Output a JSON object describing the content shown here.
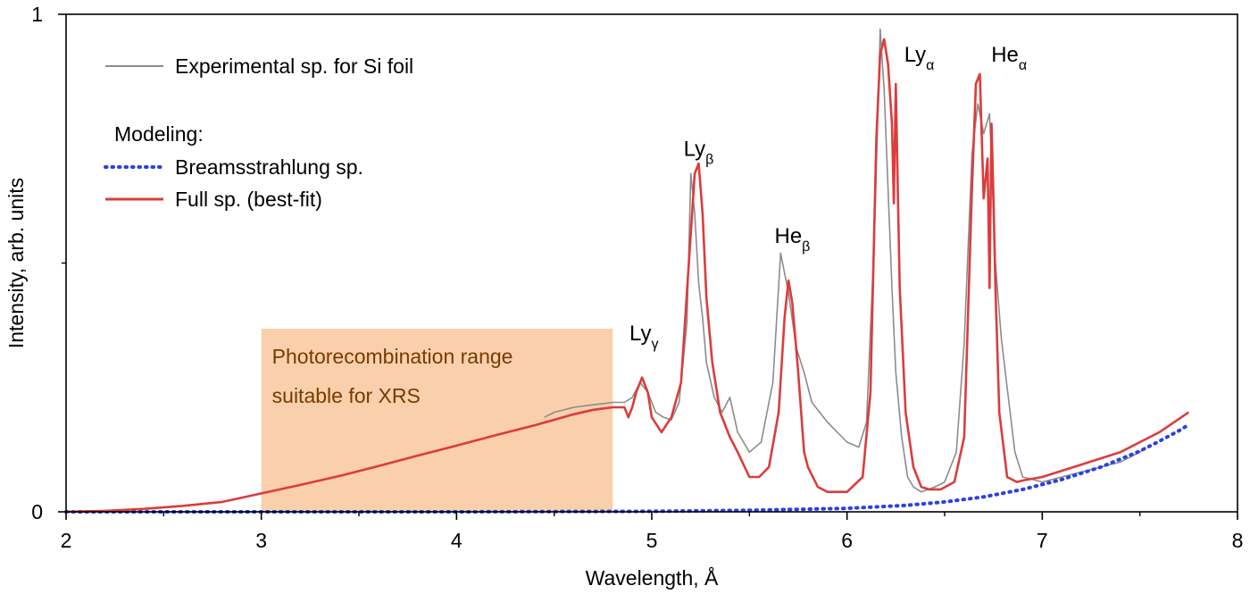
{
  "chart_data": {
    "type": "line",
    "xlabel": "Wavelength, Å",
    "ylabel": "Intensity, arb. units",
    "xlim": [
      2,
      8
    ],
    "ylim": [
      0,
      1
    ],
    "xticks": [
      "2",
      "3",
      "4",
      "5",
      "6",
      "7",
      "8"
    ],
    "yticks": [
      "0",
      "1"
    ],
    "legend": {
      "position": "top-left",
      "experimental_label": "Experimental sp. for Si foil",
      "modeling_header": "Modeling:",
      "brems_label": "Breamsstrahlung sp.",
      "full_label": "Full sp. (best-fit)"
    },
    "region": {
      "x_range": [
        3.0,
        4.8
      ],
      "line1": "Photorecombination range",
      "line2": "suitable for XRS",
      "color": "#f9cda7"
    },
    "peak_labels": [
      {
        "x": 4.96,
        "y": 0.345,
        "base": "Ly",
        "sub": "γ"
      },
      {
        "x": 5.24,
        "y": 0.715,
        "base": "Ly",
        "sub": "β"
      },
      {
        "x": 5.72,
        "y": 0.54,
        "base": "He",
        "sub": "β"
      },
      {
        "x": 6.37,
        "y": 0.905,
        "base": "Ly",
        "sub": "α"
      },
      {
        "x": 6.83,
        "y": 0.905,
        "base": "He",
        "sub": "α"
      }
    ],
    "series": [
      {
        "name": "Experimental sp. for Si foil",
        "color": "#8c8c8c",
        "x": [
          4.45,
          4.5,
          4.6,
          4.7,
          4.8,
          4.86,
          4.9,
          4.94,
          4.98,
          5.02,
          5.06,
          5.1,
          5.14,
          5.18,
          5.2,
          5.22,
          5.24,
          5.26,
          5.28,
          5.32,
          5.36,
          5.4,
          5.44,
          5.5,
          5.56,
          5.62,
          5.66,
          5.7,
          5.74,
          5.78,
          5.82,
          5.9,
          6.0,
          6.06,
          6.1,
          6.14,
          6.17,
          6.19,
          6.21,
          6.23,
          6.25,
          6.28,
          6.31,
          6.34,
          6.38,
          6.45,
          6.5,
          6.56,
          6.6,
          6.64,
          6.67,
          6.7,
          6.73,
          6.76,
          6.79,
          6.82,
          6.86,
          6.9,
          7.0,
          7.1,
          7.2,
          7.3,
          7.4,
          7.5,
          7.53
        ],
        "y": [
          0.19,
          0.2,
          0.21,
          0.215,
          0.22,
          0.22,
          0.23,
          0.26,
          0.24,
          0.2,
          0.19,
          0.185,
          0.22,
          0.38,
          0.68,
          0.6,
          0.46,
          0.39,
          0.3,
          0.23,
          0.2,
          0.23,
          0.16,
          0.12,
          0.14,
          0.26,
          0.52,
          0.44,
          0.33,
          0.28,
          0.22,
          0.18,
          0.14,
          0.13,
          0.18,
          0.55,
          0.97,
          0.85,
          0.65,
          0.45,
          0.28,
          0.15,
          0.07,
          0.05,
          0.04,
          0.05,
          0.06,
          0.12,
          0.34,
          0.72,
          0.82,
          0.76,
          0.8,
          0.5,
          0.35,
          0.25,
          0.12,
          0.07,
          0.06,
          0.07,
          0.08,
          0.09,
          0.1,
          0.12,
          0.13
        ]
      },
      {
        "name": "Breamsstrahlung sp.",
        "color": "#2b3fe6",
        "x": [
          2.0,
          3.0,
          4.0,
          5.0,
          5.5,
          6.0,
          6.3,
          6.5,
          6.7,
          6.9,
          7.1,
          7.3,
          7.5,
          7.6,
          7.7,
          7.75
        ],
        "y": [
          0.0,
          0.0,
          0.0,
          0.001,
          0.003,
          0.007,
          0.013,
          0.02,
          0.03,
          0.045,
          0.065,
          0.09,
          0.122,
          0.142,
          0.163,
          0.175
        ]
      },
      {
        "name": "Full sp. (best-fit)",
        "color": "#dc3c3c",
        "x": [
          2.0,
          2.2,
          2.4,
          2.6,
          2.8,
          3.0,
          3.2,
          3.4,
          3.6,
          3.8,
          4.0,
          4.2,
          4.4,
          4.6,
          4.7,
          4.8,
          4.86,
          4.88,
          4.9,
          4.92,
          4.95,
          4.98,
          5.0,
          5.05,
          5.1,
          5.15,
          5.19,
          5.22,
          5.24,
          5.26,
          5.28,
          5.31,
          5.35,
          5.4,
          5.44,
          5.5,
          5.55,
          5.6,
          5.65,
          5.68,
          5.7,
          5.72,
          5.75,
          5.78,
          5.8,
          5.85,
          5.9,
          6.0,
          6.08,
          6.12,
          6.15,
          6.17,
          6.19,
          6.21,
          6.23,
          6.24,
          6.25,
          6.26,
          6.27,
          6.3,
          6.34,
          6.38,
          6.42,
          6.48,
          6.55,
          6.6,
          6.64,
          6.66,
          6.68,
          6.7,
          6.72,
          6.73,
          6.74,
          6.75,
          6.76,
          6.78,
          6.82,
          6.87,
          6.9,
          7.0,
          7.2,
          7.4,
          7.6,
          7.75
        ],
        "y": [
          0.0,
          0.002,
          0.006,
          0.012,
          0.02,
          0.037,
          0.054,
          0.072,
          0.092,
          0.113,
          0.133,
          0.154,
          0.174,
          0.196,
          0.205,
          0.21,
          0.21,
          0.19,
          0.21,
          0.24,
          0.27,
          0.24,
          0.19,
          0.16,
          0.19,
          0.26,
          0.5,
          0.68,
          0.7,
          0.6,
          0.43,
          0.3,
          0.2,
          0.15,
          0.12,
          0.07,
          0.07,
          0.09,
          0.2,
          0.39,
          0.465,
          0.42,
          0.28,
          0.12,
          0.09,
          0.05,
          0.04,
          0.04,
          0.07,
          0.24,
          0.75,
          0.92,
          0.95,
          0.9,
          0.78,
          0.62,
          0.86,
          0.65,
          0.45,
          0.2,
          0.09,
          0.05,
          0.045,
          0.045,
          0.06,
          0.15,
          0.65,
          0.86,
          0.88,
          0.63,
          0.71,
          0.45,
          0.78,
          0.63,
          0.45,
          0.2,
          0.07,
          0.06,
          0.063,
          0.07,
          0.095,
          0.12,
          0.16,
          0.2
        ]
      }
    ]
  }
}
